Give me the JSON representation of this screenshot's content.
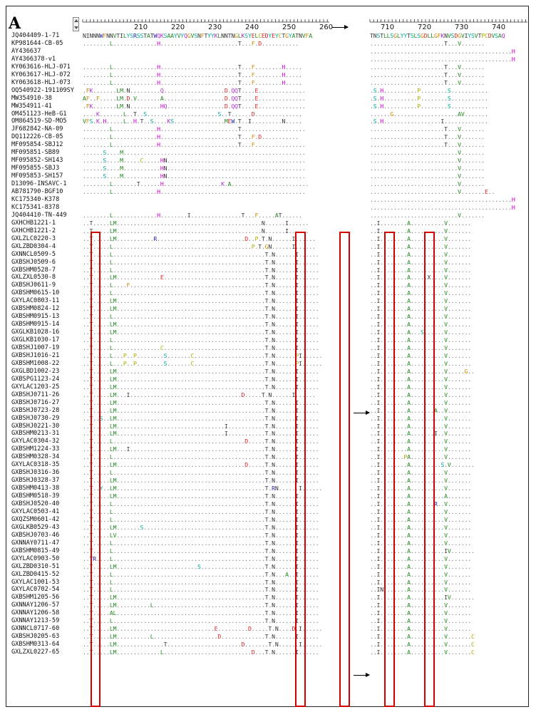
{
  "panel_label": "A",
  "ticks_left": [
    "210",
    "220",
    "230",
    "240",
    "250",
    "260"
  ],
  "ticks_right": [
    "710",
    "720",
    "730",
    "740"
  ],
  "reference": {
    "left": "NINNNWFNNVTILYSRSSTATWQKSAAYVYQGVSNFTYYKLNNTNGLKSYELCEDYEYCTGYATNVFA",
    "right": "TNSTLLSGLYYTSLSGDLLGFKNVSDGVIYSVTPCDVSAQ"
  },
  "sequences": [
    {
      "name": "JQ404409-1-71",
      "l": "",
      "r": ""
    },
    {
      "name": "KP981644-CB-05",
      "l": "........L.............H.......................T...F.D...........",
      "r": "......................T...V......."
    },
    {
      "name": "AY436637",
      "l": "",
      "r": "..........................................H"
    },
    {
      "name": "AY4366378-v1",
      "l": "",
      "r": "..........................................H"
    },
    {
      "name": "KY063616-HLJ-071",
      "l": "........L.............H.......................T...F........H.....",
      "r": "......................T...V......."
    },
    {
      "name": "KY063617-HLJ-072",
      "l": "........L.............H.......................T...F........H.....",
      "r": "......................T...V......."
    },
    {
      "name": "KY063618-HLJ-073",
      "l": "........L.............H.......................T...F........H.....",
      "r": "......................T...V......."
    },
    {
      "name": "OQ540922-191109SY",
      "l": ".FK.......LM.N.........Q..................D.QQT....E..............",
      "r": ".S.H..........P........S..........."
    },
    {
      "name": "MW354910-38",
      "l": "AF..F.....LM.D.V.......A..................D.QQT....E..............",
      "r": ".S.H..........P........S..........."
    },
    {
      "name": "MW354911-41",
      "l": ".FK.......LM.N.........HQ.................D.QQT....E..............",
      "r": ".S.H..........P........S..........."
    },
    {
      "name": "OM451123-HeB-G1",
      "l": "....K.......L..T..S.....................S..T......D..............",
      "r": "......G...................AV......."
    },
    {
      "name": "OM864519-SD-MO5",
      "l": "VFS.K.H.....L..H.T..S....KS...............MEW.T..I.........N.....",
      "r": ".S.H.................I............."
    },
    {
      "name": "JF682842-NA-09",
      "l": "........L.............H.......................T...................",
      "r": "......................T...V......."
    },
    {
      "name": "DQ112226-CB-05",
      "l": "........L.............H.......................T...F.D...........",
      "r": "......................T...V......."
    },
    {
      "name": "MF095854-SBJ12",
      "l": "........L.............H.......................T...F...............",
      "r": "......................T...V......."
    },
    {
      "name": "MF095851-SB89",
      "l": "......S....M......................................................",
      "r": "..........................V......."
    },
    {
      "name": "MF095852-SH143",
      "l": "......S....M.....C.....HN.........................................",
      "r": "..........................V......."
    },
    {
      "name": "MF095855-SBJ3",
      "l": "......S....M...........HN.........................................",
      "r": "..........................V......."
    },
    {
      "name": "MF095853-SH157",
      "l": "......S....M...........HN.........................................",
      "r": "..........................V......."
    },
    {
      "name": "D13096-INSAVC-1",
      "l": "........L.......T......H.................K.A.......................",
      "r": "..........................V......."
    },
    {
      "name": "AB781790-BGF10",
      "l": "........L.............H...........................................",
      "r": "..........................V.......E.."
    },
    {
      "name": "KC175340-K378",
      "l": "",
      "r": "..........................................H"
    },
    {
      "name": "KC175341-8378",
      "l": "",
      "r": "..........................................H"
    },
    {
      "name": "JQ404410-TN-449",
      "l": "........L.............H........I...............T...F.....AT......",
      "r": "..........................V......."
    },
    {
      "name": "GXHCHB1221-1",
      "l": "..T.....LM...........................................N......I......",
      "r": "..I........A..........V......."
    },
    {
      "name": "GXHCHB1221-2",
      "l": "..T.....LM...........................................N......I......",
      "r": "..I........A..........V......."
    },
    {
      "name": "GXLZLC0220-3",
      "l": "..T.....LM...........R..........................D..P.T.N......I......",
      "r": "..I........A..........V......."
    },
    {
      "name": "GXLZBD0304-4",
      "l": "..T.....L.........................................P.T.GN......I......",
      "r": "..I........A..........V......."
    },
    {
      "name": "GXNNCL0509-5",
      "l": "..T.....L.............................................T.N......I......",
      "r": "..I........A..........V......."
    },
    {
      "name": "GXBSHJ0509-6",
      "l": "..T.....L.............................................T.N......I......",
      "r": "..I........A..........V......."
    },
    {
      "name": "GXBSHM0528-7",
      "l": "..T.....L.............................................T.N......I......",
      "r": "..I........A..........V......."
    },
    {
      "name": "GXLZXL0530-8",
      "l": "..T.....LM.............E..............................T.N......I......",
      "r": "..I........A.....X....V......."
    },
    {
      "name": "GXBSHJ0611-9",
      "l": "..T.....L....F........................................T.N......I......",
      "r": "..I........A..........V......."
    },
    {
      "name": "GXBSHM0615-10",
      "l": "..T.....L.............................................T.N......I......",
      "r": "..I........A..........V......."
    },
    {
      "name": "GXYLAC0803-11",
      "l": "..T.....LM............................................T.N......I......",
      "r": "..I........A..........V......."
    },
    {
      "name": "GXBSHM0824-12",
      "l": "..T.....LM............................................T.N......I......",
      "r": "..I........A..........V......."
    },
    {
      "name": "GXBSHM0915-13",
      "l": "..T.....L.............................................T.N......I......",
      "r": "..I........A..........V......."
    },
    {
      "name": "GXBSHM0915-14",
      "l": "..T.....LM............................................T.N......I......",
      "r": "..I........A..........V......."
    },
    {
      "name": "GXGLKB1028-16",
      "l": "..T.....LM............................................T.N......I......",
      "r": "..I........A...S......V......."
    },
    {
      "name": "GXGLKB1030-17",
      "l": "..T.....L.............................................T.N......I......",
      "r": "..I........A..........V......."
    },
    {
      "name": "GXBSHJ1007-19",
      "l": "..T.....L..............C..............................T.N......I......",
      "r": "..I........A..........V......."
    },
    {
      "name": "GXBSHJ1016-21",
      "l": "..T.....L...P..P........S.......C.....................T.N......PI......",
      "r": "..I........A..........V......."
    },
    {
      "name": "GXBSHM1008-22",
      "l": "..T.....L...P..P........S.......C.....................T.N......PI......",
      "r": "..I........A..........V......."
    },
    {
      "name": "GXGLBD1002-23",
      "l": "..T.....LM............................................T.N......I......",
      "r": "..I........A..........V.....G.."
    },
    {
      "name": "GXBSPG1123-24",
      "l": "..T.....LM............................................T.N......I......",
      "r": "..I........A..........V......."
    },
    {
      "name": "GXYLAC1203-25",
      "l": "..T.....LM............................................T.N......I......",
      "r": "..I........A..........V......."
    },
    {
      "name": "GXBSHJ0711-26",
      "l": "..T.....LM...I.................................D.....T.N......I......",
      "r": "..I........A..........V......."
    },
    {
      "name": "GXBSHJ0716-27",
      "l": "..T.....LM............................................T.N......I......",
      "r": "..I........A..........V......."
    },
    {
      "name": "GXBSHJ0723-28",
      "l": "..T.....LM............................................T.N......I......",
      "r": "..I........A.......A..V......."
    },
    {
      "name": "GXBSHJ0730-29",
      "l": "..T..S..LM............................................T.N......I......",
      "r": "..I........A..........V......."
    },
    {
      "name": "GXBSHJ0221-30",
      "l": "..T.....LM................................I...........T.N......I......",
      "r": "..I........A..........V......."
    },
    {
      "name": "GXBSHM0213-31",
      "l": "..T.....LM................................I...........T.N......I......",
      "r": "..I........A.......I..V......."
    },
    {
      "name": "GXYLAC0304-32",
      "l": "..T.....L.......................................D.....T.N......I......",
      "r": "..I........A..........V......."
    },
    {
      "name": "GXBSHM1224-33",
      "l": "..T.....LM...I........................................T.N......I......",
      "r": "..I........A..........V......."
    },
    {
      "name": "GXBSHM0328-34",
      "l": "..T.....L.............................................T.N......I......",
      "r": "..I.......PA..........V......."
    },
    {
      "name": "GXYLAC0318-35",
      "l": "..T.....LM......................................D.....T.N......I......",
      "r": "..I........A.........S.V......."
    },
    {
      "name": "GXBSHJ0316-36",
      "l": "..T.....L.............................................T.N......I......",
      "r": "..I........A..........V......."
    },
    {
      "name": "GXBSHJ0328-37",
      "l": "..T.....LM............................................T.N......I......",
      "r": "..I........A..........V......."
    },
    {
      "name": "GXBSHM0413-38",
      "l": "..T..Y..LM............................................T.RN......I......",
      "r": "..I........A..........V......."
    },
    {
      "name": "GXBSHM0518-39",
      "l": "..T.....LM............................................T.N......I......",
      "r": "..I........A..........A......."
    },
    {
      "name": "GXBSHJ0520-40",
      "l": "..T.....L.............................................T.N......I......",
      "r": "..I........A.......R..V......."
    },
    {
      "name": "GXYLAC0503-41",
      "l": "..T.....L.............................................T.N......I......",
      "r": "..I........A..........V......."
    },
    {
      "name": "GXQZSM0601-42",
      "l": "..T.....L.............................................T.N......I......",
      "r": "..I........A..........V......."
    },
    {
      "name": "GXGLKB0529-43",
      "l": "..T.....LM.......S....................................T.N......I......",
      "r": "..I........A..........V......."
    },
    {
      "name": "GXBSHJ0703-46",
      "l": "..T.....LV............................................T.N......I......",
      "r": "..I........A..........V......."
    },
    {
      "name": "GXNNAY0711-47",
      "l": "..T.....L.............................................T.N......I......",
      "r": "..I........A..........V......."
    },
    {
      "name": "GXBSHM0815-49",
      "l": "..T.....L.............................................T.N......I......",
      "r": "..I........A..........IV......."
    },
    {
      "name": "GXYLAC0903-50",
      "l": "..TR....L.............................................T.N......I......",
      "r": "..I........A..........V......."
    },
    {
      "name": "GXLZBD0310-51",
      "l": "..T.....LM........................S...................T.N......I......",
      "r": "..I........A..........V......."
    },
    {
      "name": "GXLZBD0415-52",
      "l": "..T.....L.............................................T.N...A..I......",
      "r": "..I........A..........V......."
    },
    {
      "name": "GXYLAC1001-53",
      "l": "..T.....L.............................................T.N......I......",
      "r": "..I........A..........V......."
    },
    {
      "name": "GXYLAC0702-54",
      "l": "..T.....L.............................................T.N......I......",
      "r": "..IN.......A..........V......."
    },
    {
      "name": "GXBSHM1205-56",
      "l": "..T.....LM............................................T.N......I......",
      "r": "..I........A..........IV......."
    },
    {
      "name": "GXNNAY1206-57",
      "l": "..T.....LM..........L.................................T.N......I......",
      "r": "..I........A..........V......."
    },
    {
      "name": "GXNNAY1206-58",
      "l": "..T.....AL............................................T.N......I......",
      "r": "..I........A..........V......."
    },
    {
      "name": "GXNNAY1213-59",
      "l": "..T.....L.............................................T.N......I......",
      "r": "..I........A..........V......."
    },
    {
      "name": "GXNNCL0717-60",
      "l": "..T.....LM.............................E.........D.....T.N....D.I......",
      "r": "..I........A..........V......."
    },
    {
      "name": "GXBSHJ0205-63",
      "l": "..T.....LM..........L...................D.............T.N......I......",
      "r": "..I........A..........V.......C"
    },
    {
      "name": "GXBSHM0313-64",
      "l": "..T.....LM..............T......................D.......T.N......I......",
      "r": "..I........A..........V.......C"
    },
    {
      "name": "GXLZXL0227-65",
      "l": "..T.....LM.............L..........................D...T.N......I......",
      "r": "..I........A..........V.......C"
    }
  ]
}
